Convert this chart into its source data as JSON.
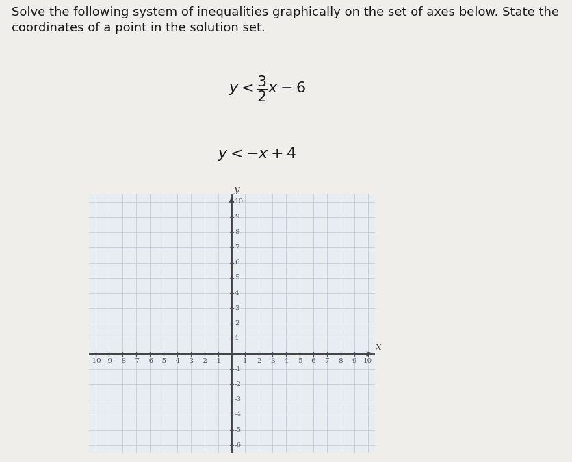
{
  "title_text": "Solve the following system of inequalities graphically on the set of axes below. State the\ncoordinates of a point in the solution set.",
  "ineq1": "$y < \\dfrac{3}{2}x - 6$",
  "ineq2": "$y < -x + 4$",
  "xlim": [
    -10,
    10
  ],
  "ylim": [
    -6,
    10
  ],
  "xticks": [
    -10,
    -9,
    -8,
    -7,
    -6,
    -5,
    -4,
    -3,
    -2,
    -1,
    1,
    2,
    3,
    4,
    5,
    6,
    7,
    8,
    9,
    10
  ],
  "yticks_pos": [
    1,
    2,
    3,
    4,
    5,
    6,
    7,
    8,
    9,
    10
  ],
  "yticks_neg": [
    -1,
    -2,
    -3,
    -4,
    -5,
    -6
  ],
  "grid_color": "#c5ccd6",
  "axis_color": "#444444",
  "grid_bg": "#e8edf2",
  "page_bg": "#f0eeea",
  "text_color": "#1a1a1a",
  "tick_color": "#555566",
  "tick_fontsize": 7.5,
  "label_fontsize": 11
}
